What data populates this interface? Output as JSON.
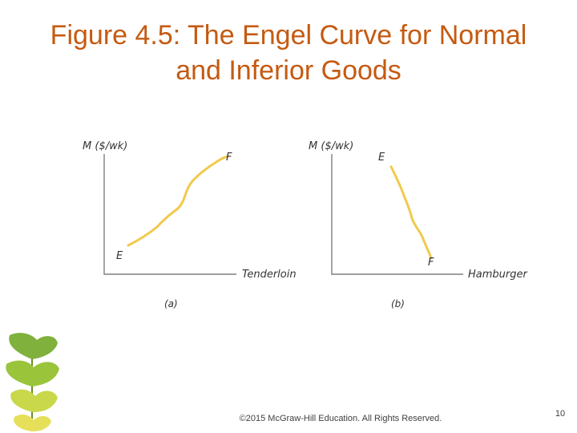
{
  "slide": {
    "title_line1": "Figure 4.5: The Engel Curve for Normal",
    "title_line2": "and Inferior Goods",
    "footer": "©2015 McGraw-Hill Education. All Rights Reserved.",
    "page_number": "10"
  },
  "colors": {
    "title": "#c55a11",
    "curve": "#f2c94c",
    "axis": "#7f7f7f"
  },
  "chart_data": [
    {
      "type": "line",
      "panel_caption": "(a)",
      "ylabel": "M ($/wk)",
      "xlabel": "Tenderloin",
      "points": [
        {
          "x": 0.1,
          "y": 0.1,
          "label": "E"
        },
        {
          "x": 0.9,
          "y": 0.9,
          "label": "F"
        }
      ]
    },
    {
      "type": "line",
      "panel_caption": "(b)",
      "ylabel": "M ($/wk)",
      "xlabel": "Hamburger",
      "points": [
        {
          "x": 0.45,
          "y": 0.9,
          "label": "E"
        },
        {
          "x": 0.75,
          "y": 0.15,
          "label": "F"
        }
      ]
    }
  ]
}
